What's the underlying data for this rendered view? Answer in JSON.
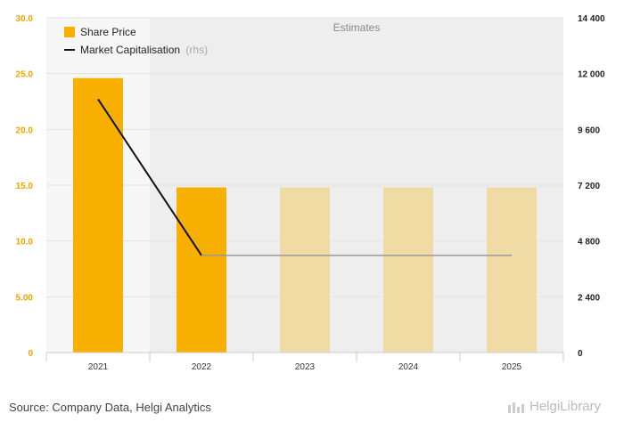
{
  "chart_data": {
    "type": "bar",
    "categories": [
      "2021",
      "2022",
      "2023",
      "2024",
      "2025"
    ],
    "series": [
      {
        "name": "Share Price",
        "kind": "bar",
        "axis": "left",
        "values": [
          24.6,
          14.8,
          14.8,
          14.8,
          14.8
        ]
      },
      {
        "name": "Market Capitalisation",
        "axis_note": "(rhs)",
        "kind": "line",
        "axis": "right",
        "values": [
          10900,
          4180,
          4180,
          4180,
          4180
        ]
      }
    ],
    "estimates_label": "Estimates",
    "estimate_from_index": 1,
    "left_axis": {
      "ticks": [
        "0",
        "5.00",
        "10.0",
        "15.0",
        "20.0",
        "25.0",
        "30.0"
      ],
      "range": [
        0,
        30
      ]
    },
    "right_axis": {
      "ticks": [
        "0",
        "2 400",
        "4 800",
        "7 200",
        "9 600",
        "12 000",
        "14 400"
      ],
      "range": [
        0,
        14400
      ]
    },
    "legend_position": "top-left",
    "colors": {
      "bar": "#F7AF00",
      "bar_estimate": "#F1DBA4",
      "line": "#111111",
      "line_estimate": "#9a9a9a",
      "estimate_bg": "#EEEEEE",
      "grid": "#e2e2e2"
    }
  },
  "footer": {
    "source": "Source: Company Data, Helgi Analytics",
    "brand": "HelgiLibrary",
    "brand_icon": "helgi-logo-icon"
  }
}
